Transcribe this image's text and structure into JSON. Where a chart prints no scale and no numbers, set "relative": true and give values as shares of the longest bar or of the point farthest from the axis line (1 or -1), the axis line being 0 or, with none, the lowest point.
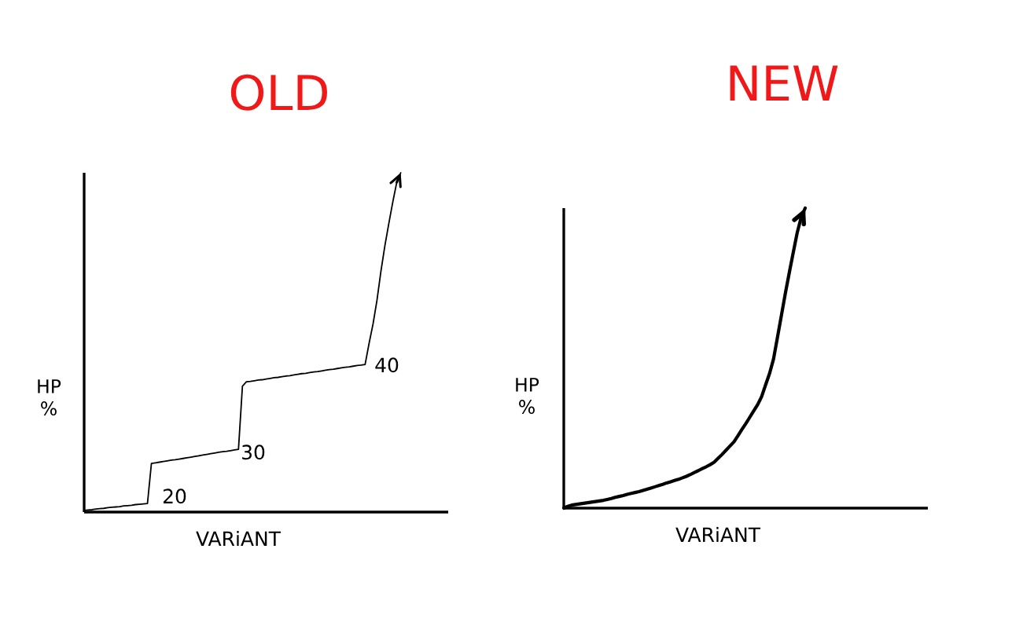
{
  "chart_data": [
    {
      "type": "line",
      "title": "OLD",
      "xlabel": "VARiANT",
      "ylabel": "HP\n%",
      "relative": true,
      "color": "#000000",
      "categories": [
        null,
        null,
        null,
        null,
        null,
        null,
        null,
        null,
        null,
        null,
        null,
        null,
        null,
        null,
        null,
        null,
        null,
        null,
        null,
        null,
        null,
        null,
        null,
        null,
        null,
        null,
        null,
        null,
        null,
        null,
        null,
        null,
        null,
        null,
        null,
        null,
        null,
        null,
        null,
        null,
        null,
        null,
        null,
        null,
        null,
        null,
        null,
        null,
        null,
        null,
        null,
        null,
        null,
        null,
        null,
        null,
        null,
        null,
        null,
        null,
        null,
        null,
        null,
        null,
        null,
        null,
        null,
        null,
        null,
        null,
        null,
        null,
        null,
        null,
        null,
        null,
        null,
        null,
        null,
        null,
        null,
        null,
        null,
        null,
        null,
        null,
        null,
        null,
        null,
        null,
        null,
        null,
        null
      ],
      "values": [
        0.005,
        0.006,
        0.007,
        0.009,
        0.01,
        0.011,
        0.013,
        0.014,
        0.015,
        0.016,
        0.018,
        0.019,
        0.02,
        0.022,
        0.023,
        0.024,
        0.025,
        0.143,
        0.145,
        0.147,
        0.149,
        0.151,
        0.153,
        0.154,
        0.156,
        0.158,
        0.16,
        0.162,
        0.164,
        0.166,
        0.168,
        0.17,
        0.172,
        0.174,
        0.176,
        0.178,
        0.179,
        0.181,
        0.183,
        0.185,
        0.371,
        0.384,
        0.385,
        0.387,
        0.389,
        0.39,
        0.392,
        0.394,
        0.396,
        0.397,
        0.399,
        0.401,
        0.402,
        0.404,
        0.406,
        0.408,
        0.409,
        0.411,
        0.413,
        0.414,
        0.416,
        0.418,
        0.42,
        0.421,
        0.423,
        0.425,
        0.427,
        0.428,
        0.43,
        0.432,
        0.433,
        0.435,
        0.497,
        0.554,
        0.624,
        0.71,
        0.785,
        0.851,
        0.914,
        0.972,
        1.0,
        null,
        null,
        null,
        null,
        null,
        null,
        null,
        null,
        null,
        null,
        null,
        null
      ],
      "annotations": [
        "20",
        "30",
        "40"
      ]
    },
    {
      "type": "line",
      "title": "NEW",
      "xlabel": "VARiANT",
      "ylabel": "HP\n%",
      "relative": true,
      "color": "#000000",
      "categories": [
        null,
        null,
        null,
        null,
        null,
        null,
        null,
        null,
        null,
        null,
        null,
        null,
        null,
        null,
        null,
        null,
        null,
        null,
        null,
        null,
        null,
        null,
        null,
        null,
        null,
        null,
        null,
        null,
        null,
        null,
        null,
        null,
        null,
        null,
        null,
        null,
        null,
        null,
        null,
        null,
        null,
        null,
        null,
        null,
        null,
        null,
        null,
        null,
        null,
        null,
        null,
        null,
        null,
        null,
        null,
        null,
        null,
        null,
        null,
        null,
        null,
        null,
        null,
        null,
        null,
        null,
        null,
        null,
        null,
        null,
        null,
        null,
        null,
        null,
        null,
        null,
        null,
        null,
        null,
        null,
        null,
        null,
        null,
        null,
        null,
        null,
        null,
        null,
        null,
        null,
        null,
        null,
        null
      ],
      "values": [
        0.0,
        0.006,
        0.01,
        0.012,
        0.014,
        0.016,
        0.018,
        0.02,
        0.022,
        0.024,
        0.026,
        0.029,
        0.032,
        0.036,
        0.039,
        0.042,
        0.046,
        0.049,
        0.052,
        0.055,
        0.059,
        0.063,
        0.067,
        0.071,
        0.075,
        0.079,
        0.084,
        0.088,
        0.092,
        0.096,
        0.101,
        0.106,
        0.112,
        0.119,
        0.125,
        0.132,
        0.138,
        0.145,
        0.153,
        0.166,
        0.179,
        0.193,
        0.207,
        0.221,
        0.241,
        0.262,
        0.282,
        0.303,
        0.324,
        0.345,
        0.372,
        0.411,
        0.449,
        0.497,
        0.57,
        0.643,
        0.717,
        0.786,
        0.853,
        0.919,
        0.97,
        1.0,
        null,
        null,
        null,
        null,
        null,
        null,
        null,
        null,
        null,
        null,
        null,
        null,
        null,
        null,
        null,
        null,
        null,
        null,
        null,
        null,
        null,
        null,
        null,
        null,
        null,
        null,
        null,
        null,
        null,
        null,
        null
      ]
    }
  ]
}
